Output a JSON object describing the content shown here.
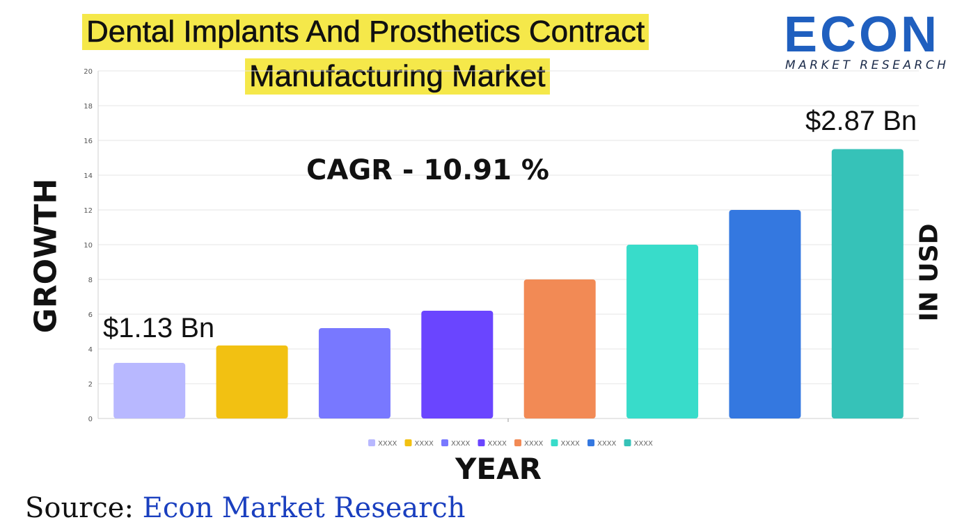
{
  "header": {
    "title_line1": "Dental Implants And Prosthetics Contract",
    "title_line2": "Manufacturing Market"
  },
  "logo": {
    "word": "ECON",
    "subtitle": "MARKET RESEARCH"
  },
  "chart_data": {
    "type": "bar",
    "categories": [
      "XXXX",
      "XXXX",
      "XXXX",
      "XXXX",
      "XXXX",
      "XXXX",
      "XXXX",
      "XXXX"
    ],
    "values": [
      3.2,
      4.2,
      5.2,
      6.2,
      8,
      10,
      12,
      15.5
    ],
    "colors": [
      "#b8b8ff",
      "#f2c112",
      "#7878ff",
      "#6a45ff",
      "#f28a55",
      "#38dcca",
      "#3478e0",
      "#36c2b8"
    ],
    "ylim": [
      0,
      20
    ],
    "yticks": [
      0,
      2,
      4,
      6,
      8,
      10,
      12,
      14,
      16,
      18,
      20
    ],
    "grid": true,
    "legend_position": "bottom",
    "ylabel": "GROWTH",
    "ylabel_right": "IN USD",
    "xlabel": "YEAR",
    "cagr_text": "CAGR  - 10.91 %",
    "annotation_start": "$1.13 Bn",
    "annotation_end": "$2.87 Bn"
  },
  "footer": {
    "source_label": "Source:",
    "source_org": " Econ Market Research"
  }
}
